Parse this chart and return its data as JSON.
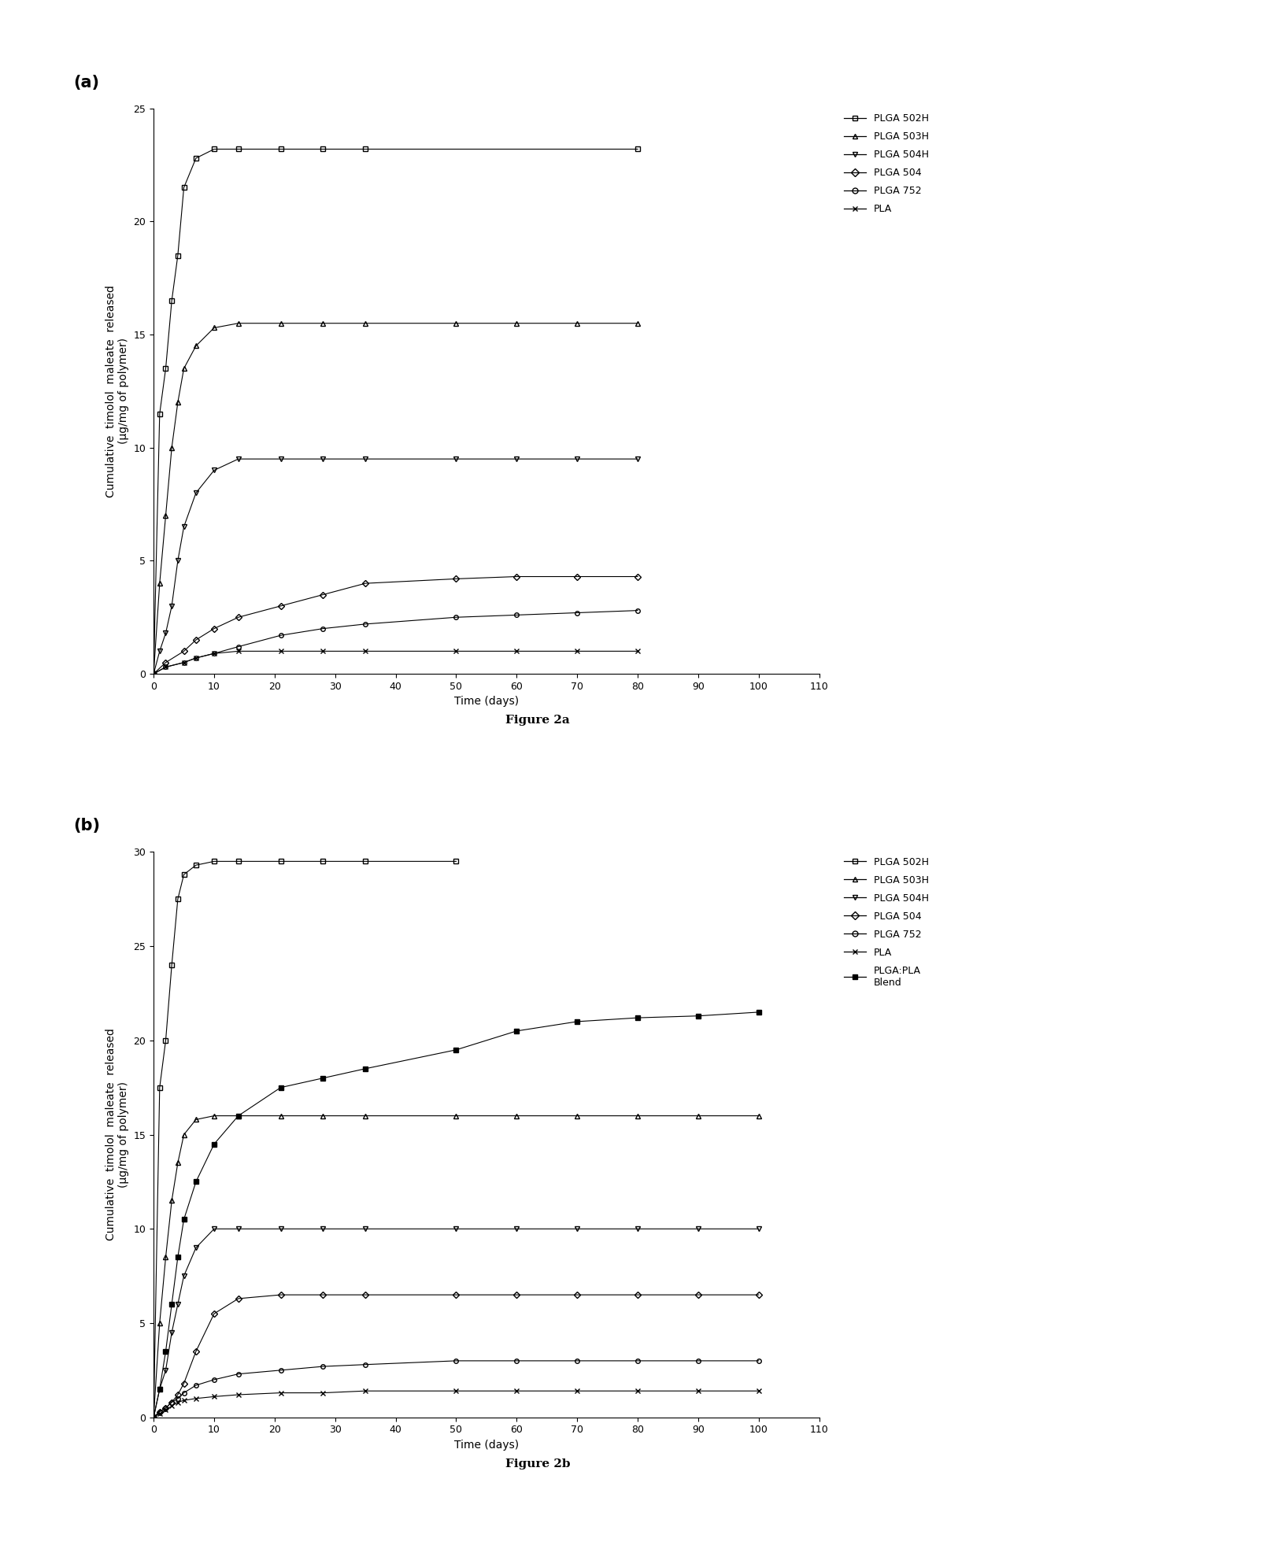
{
  "fig_a": {
    "title": "Figure 2a",
    "xlabel": "Time (days)",
    "ylabel": "Cumulative  timolol  maleate  released\n(μg/mg of polymer)",
    "xlim": [
      0,
      110
    ],
    "ylim": [
      0,
      25
    ],
    "xticks": [
      0,
      10,
      20,
      30,
      40,
      50,
      60,
      70,
      80,
      90,
      100,
      110
    ],
    "yticks": [
      0,
      5,
      10,
      15,
      20,
      25
    ],
    "series": [
      {
        "label": "PLGA 502H",
        "marker": "s",
        "color": "#000000",
        "linestyle": "-",
        "filled": false,
        "x": [
          0,
          1,
          2,
          3,
          4,
          5,
          7,
          10,
          14,
          21,
          28,
          35,
          80
        ],
        "y": [
          0,
          11.5,
          13.5,
          16.5,
          18.5,
          21.5,
          22.8,
          23.2,
          23.2,
          23.2,
          23.2,
          23.2,
          23.2
        ]
      },
      {
        "label": "PLGA 503H",
        "marker": "^",
        "color": "#000000",
        "linestyle": "-",
        "filled": false,
        "x": [
          0,
          1,
          2,
          3,
          4,
          5,
          7,
          10,
          14,
          21,
          28,
          35,
          50,
          60,
          70,
          80
        ],
        "y": [
          0,
          4.0,
          7.0,
          10.0,
          12.0,
          13.5,
          14.5,
          15.3,
          15.5,
          15.5,
          15.5,
          15.5,
          15.5,
          15.5,
          15.5,
          15.5
        ]
      },
      {
        "label": "PLGA 504H",
        "marker": "v",
        "color": "#000000",
        "linestyle": "-",
        "filled": false,
        "x": [
          0,
          1,
          2,
          3,
          4,
          5,
          7,
          10,
          14,
          21,
          28,
          35,
          50,
          60,
          70,
          80
        ],
        "y": [
          0,
          1.0,
          1.8,
          3.0,
          5.0,
          6.5,
          8.0,
          9.0,
          9.5,
          9.5,
          9.5,
          9.5,
          9.5,
          9.5,
          9.5,
          9.5
        ]
      },
      {
        "label": "PLGA 504",
        "marker": "D",
        "color": "#000000",
        "linestyle": "-",
        "filled": false,
        "x": [
          0,
          2,
          5,
          7,
          10,
          14,
          21,
          28,
          35,
          50,
          60,
          70,
          80
        ],
        "y": [
          0,
          0.5,
          1.0,
          1.5,
          2.0,
          2.5,
          3.0,
          3.5,
          4.0,
          4.2,
          4.3,
          4.3,
          4.3
        ]
      },
      {
        "label": "PLGA 752",
        "marker": "o",
        "color": "#000000",
        "linestyle": "-",
        "filled": false,
        "x": [
          0,
          2,
          5,
          7,
          10,
          14,
          21,
          28,
          35,
          50,
          60,
          70,
          80
        ],
        "y": [
          0,
          0.3,
          0.5,
          0.7,
          0.9,
          1.2,
          1.7,
          2.0,
          2.2,
          2.5,
          2.6,
          2.7,
          2.8
        ]
      },
      {
        "label": "PLA",
        "marker": "x",
        "color": "#000000",
        "linestyle": "-",
        "filled": false,
        "x": [
          0,
          2,
          5,
          7,
          10,
          14,
          21,
          28,
          35,
          50,
          60,
          70,
          80
        ],
        "y": [
          0,
          0.3,
          0.5,
          0.7,
          0.9,
          1.0,
          1.0,
          1.0,
          1.0,
          1.0,
          1.0,
          1.0,
          1.0
        ]
      }
    ]
  },
  "fig_b": {
    "title": "Figure 2b",
    "xlabel": "Time (days)",
    "ylabel": "Cumulative  timolol  maleate  released\n(μg/mg of polymer)",
    "xlim": [
      0,
      110
    ],
    "ylim": [
      0,
      30
    ],
    "xticks": [
      0,
      10,
      20,
      30,
      40,
      50,
      60,
      70,
      80,
      90,
      100,
      110
    ],
    "yticks": [
      0,
      5,
      10,
      15,
      20,
      25,
      30
    ],
    "series": [
      {
        "label": "PLGA 502H",
        "marker": "s",
        "color": "#000000",
        "linestyle": "-",
        "filled": false,
        "x": [
          0,
          1,
          2,
          3,
          4,
          5,
          7,
          10,
          14,
          21,
          28,
          35,
          50
        ],
        "y": [
          0,
          17.5,
          20.0,
          24.0,
          27.5,
          28.8,
          29.3,
          29.5,
          29.5,
          29.5,
          29.5,
          29.5,
          29.5
        ]
      },
      {
        "label": "PLGA 503H",
        "marker": "^",
        "color": "#000000",
        "linestyle": "-",
        "filled": false,
        "x": [
          0,
          1,
          2,
          3,
          4,
          5,
          7,
          10,
          14,
          21,
          28,
          35,
          50,
          60,
          70,
          80,
          90,
          100
        ],
        "y": [
          0,
          5.0,
          8.5,
          11.5,
          13.5,
          15.0,
          15.8,
          16.0,
          16.0,
          16.0,
          16.0,
          16.0,
          16.0,
          16.0,
          16.0,
          16.0,
          16.0,
          16.0
        ]
      },
      {
        "label": "PLGA 504H",
        "marker": "v",
        "color": "#000000",
        "linestyle": "-",
        "filled": false,
        "x": [
          0,
          1,
          2,
          3,
          4,
          5,
          7,
          10,
          14,
          21,
          28,
          35,
          50,
          60,
          70,
          80,
          90,
          100
        ],
        "y": [
          0,
          1.5,
          2.5,
          4.5,
          6.0,
          7.5,
          9.0,
          10.0,
          10.0,
          10.0,
          10.0,
          10.0,
          10.0,
          10.0,
          10.0,
          10.0,
          10.0,
          10.0
        ]
      },
      {
        "label": "PLGA 504",
        "marker": "D",
        "color": "#000000",
        "linestyle": "-",
        "filled": false,
        "x": [
          0,
          1,
          2,
          3,
          4,
          5,
          7,
          10,
          14,
          21,
          28,
          35,
          50,
          60,
          70,
          80,
          90,
          100
        ],
        "y": [
          0,
          0.3,
          0.5,
          0.8,
          1.2,
          1.8,
          3.5,
          5.5,
          6.3,
          6.5,
          6.5,
          6.5,
          6.5,
          6.5,
          6.5,
          6.5,
          6.5,
          6.5
        ]
      },
      {
        "label": "PLGA 752",
        "marker": "o",
        "color": "#000000",
        "linestyle": "-",
        "filled": false,
        "x": [
          0,
          1,
          2,
          3,
          4,
          5,
          7,
          10,
          14,
          21,
          28,
          35,
          50,
          60,
          70,
          80,
          90,
          100
        ],
        "y": [
          0,
          0.3,
          0.5,
          0.8,
          1.0,
          1.3,
          1.7,
          2.0,
          2.3,
          2.5,
          2.7,
          2.8,
          3.0,
          3.0,
          3.0,
          3.0,
          3.0,
          3.0
        ]
      },
      {
        "label": "PLA",
        "marker": "x",
        "color": "#000000",
        "linestyle": "-",
        "filled": false,
        "x": [
          0,
          1,
          2,
          3,
          4,
          5,
          7,
          10,
          14,
          21,
          28,
          35,
          50,
          60,
          70,
          80,
          90,
          100
        ],
        "y": [
          0,
          0.2,
          0.4,
          0.6,
          0.8,
          0.9,
          1.0,
          1.1,
          1.2,
          1.3,
          1.3,
          1.4,
          1.4,
          1.4,
          1.4,
          1.4,
          1.4,
          1.4
        ]
      },
      {
        "label": "PLGA:PLA\nBlend",
        "marker": "s",
        "color": "#000000",
        "linestyle": "-",
        "filled": true,
        "x": [
          0,
          1,
          2,
          3,
          4,
          5,
          7,
          10,
          14,
          21,
          28,
          35,
          50,
          60,
          70,
          80,
          90,
          100
        ],
        "y": [
          0,
          1.5,
          3.5,
          6.0,
          8.5,
          10.5,
          12.5,
          14.5,
          16.0,
          17.5,
          18.0,
          18.5,
          19.5,
          20.5,
          21.0,
          21.2,
          21.3,
          21.5
        ]
      }
    ]
  },
  "background_color": "#ffffff",
  "panel_label_fontsize": 15,
  "axis_label_fontsize": 10,
  "tick_fontsize": 9,
  "legend_fontsize": 9,
  "caption_fontsize": 11
}
